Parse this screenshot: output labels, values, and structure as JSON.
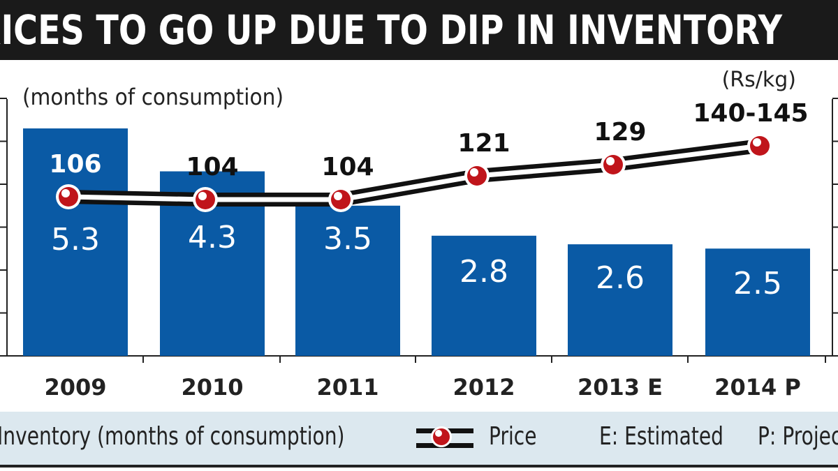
{
  "title": "PRICES TO GO UP DUE TO DIP IN INVENTORY",
  "chart_data": {
    "type": "bar",
    "title": "PRICES TO GO UP DUE TO DIP IN INVENTORY",
    "categories": [
      "2009",
      "2010",
      "2011",
      "2012",
      "2013 E",
      "2014 P"
    ],
    "left_unit": "(months of consumption)",
    "right_unit": "(Rs/kg)",
    "ylim": [
      0,
      6
    ],
    "series": [
      {
        "name": "Inventory (months of consumption)",
        "type": "bar",
        "values": [
          5.3,
          4.3,
          3.5,
          2.8,
          2.6,
          2.5
        ],
        "labels": [
          "5.3",
          "4.3",
          "3.5",
          "2.8",
          "2.6",
          "2.5"
        ],
        "color": "#0a5aa5"
      },
      {
        "name": "Price",
        "type": "line",
        "values": [
          106,
          104,
          104,
          121,
          129,
          142.5
        ],
        "labels": [
          "106",
          "104",
          "104",
          "121",
          "129",
          "140-145"
        ],
        "color": "#c0151b"
      }
    ],
    "legend": [
      "Inventory (months of consumption)",
      "Price",
      "E: Estimated",
      "P: Projected"
    ],
    "legend_placement": "bottom",
    "grid": false
  },
  "legend": {
    "inventory": "Inventory (months of consumption)",
    "price": "Price",
    "estimated": "E: Estimated",
    "projected": "P: Projected"
  }
}
